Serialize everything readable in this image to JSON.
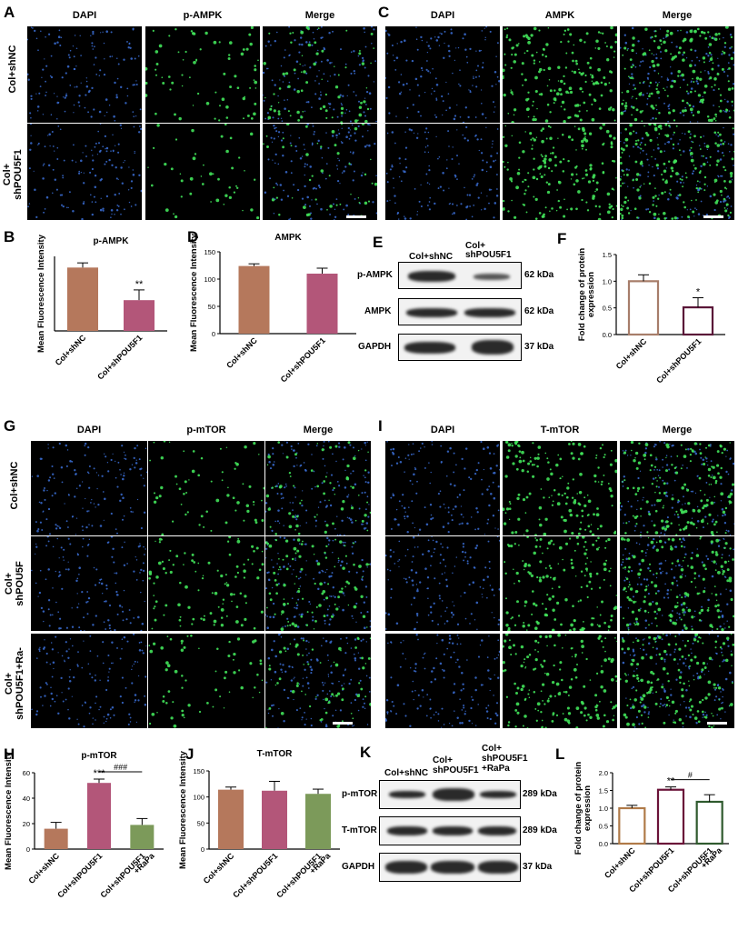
{
  "panels": {
    "A": "A",
    "B": "B",
    "C": "C",
    "D": "D",
    "E": "E",
    "F": "F",
    "G": "G",
    "H": "H",
    "I": "I",
    "J": "J",
    "K": "K",
    "L": "L"
  },
  "fluor_headers": {
    "dapi": "DAPI",
    "p_ampk": "p-AMPK",
    "ampk": "AMPK",
    "merge": "Merge",
    "p_mtor": "p-mTOR",
    "t_mtor": "T-mTOR"
  },
  "row_labels": {
    "col_shnc": "Col+shNC",
    "col_shpou5f1_a": "Col+\nshPOU5F1",
    "col_shpou5f": "Col+\nshPOU5F",
    "col_shpou5f1_ra": "Col+\nshPOU5F1+Ra-"
  },
  "colors": {
    "dapi": "#3b6fd6",
    "green": "#41e35a",
    "bar_brown": "#b5785c",
    "bar_pink": "#b35679",
    "bar_green": "#7c9a5a",
    "f_outline_brown": "#a77d6a",
    "f_outline_dark": "#5a1638",
    "l_brown": "#b07a48",
    "l_maroon": "#6a1238",
    "l_green": "#2f5a2e"
  },
  "blot_E": {
    "lanes": [
      "Col+shNC",
      "Col+\nshPOU5F1"
    ],
    "rows": [
      {
        "label": "p-AMPK",
        "size": "62 kDa"
      },
      {
        "label": "AMPK",
        "size": "62 kDa"
      },
      {
        "label": "GAPDH",
        "size": "37 kDa"
      }
    ]
  },
  "blot_K": {
    "lanes": [
      "Col+shNC",
      "Col+\nshPOU5F1",
      "Col+\nshPOU5F1\n+RaPa"
    ],
    "rows": [
      {
        "label": "p-mTOR",
        "size": "289 kDa"
      },
      {
        "label": "T-mTOR",
        "size": "289 kDa"
      },
      {
        "label": "GAPDH",
        "size": "37 kDa"
      }
    ]
  },
  "chart_data": [
    {
      "id": "B",
      "type": "bar",
      "title": "p-AMPK",
      "ylabel": "Mean Fluorescence Intensity",
      "categories": [
        "Col+shNC",
        "Col+shPOU5F1"
      ],
      "values": [
        68,
        33
      ],
      "errors": [
        5,
        11
      ],
      "sig": [
        "",
        "**"
      ],
      "ylim": [
        0,
        80
      ],
      "yticks": []
    },
    {
      "id": "D",
      "type": "bar",
      "title": "AMPK",
      "ylabel": "Mean Fluorescence Intensity",
      "categories": [
        "Col+shNC",
        "Col+shPOU5F1"
      ],
      "values": [
        124,
        110
      ],
      "errors": [
        4,
        10
      ],
      "sig": [
        "",
        ""
      ],
      "ylim": [
        0,
        150
      ],
      "yticks": [
        "0",
        "50",
        "100",
        "150"
      ]
    },
    {
      "id": "F",
      "type": "bar",
      "ylabel": "Fold change of protein\nexpression",
      "categories": [
        "Col+shNC",
        "Col+shPOU5F1"
      ],
      "values": [
        1.0,
        0.51
      ],
      "errors": [
        0.12,
        0.18
      ],
      "sig": [
        "",
        "*"
      ],
      "ylim": [
        0,
        1.5
      ],
      "yticks": [
        "0.0",
        "0.5",
        "1.0",
        "1.5"
      ]
    },
    {
      "id": "H",
      "type": "bar",
      "title": "p-mTOR",
      "ylabel": "Mean Fluorescence Intensity",
      "categories": [
        "Col+shNC",
        "Col+shPOU5F1",
        "Col+shPOU5F1\n+RaPa"
      ],
      "values": [
        16,
        52,
        19
      ],
      "errors": [
        5,
        3,
        5
      ],
      "sig": [
        "",
        "***",
        ""
      ],
      "bracket": "###",
      "ylim": [
        0,
        60
      ],
      "yticks": [
        "0",
        "20",
        "40",
        "60"
      ]
    },
    {
      "id": "J",
      "type": "bar",
      "title": "T-mTOR",
      "ylabel": "Mean Fluorescence Intensity",
      "categories": [
        "Col+shNC",
        "Col+shPOU5F1",
        "Col+shPOU5F1\n+RaPa"
      ],
      "values": [
        114,
        112,
        106
      ],
      "errors": [
        5,
        18,
        9
      ],
      "sig": [
        "",
        "",
        ""
      ],
      "ylim": [
        0,
        150
      ],
      "yticks": [
        "0",
        "50",
        "100",
        "150"
      ]
    },
    {
      "id": "L",
      "type": "bar",
      "ylabel": "Fold change of protein\nexpression",
      "categories": [
        "Col+shNC",
        "Col+shPOU5F1",
        "Col+shPOU5F1\n+RaPa"
      ],
      "values": [
        1.0,
        1.52,
        1.18
      ],
      "errors": [
        0.08,
        0.08,
        0.2
      ],
      "sig": [
        "",
        "**",
        ""
      ],
      "bracket": "#",
      "ylim": [
        0,
        2.0
      ],
      "yticks": [
        "0.0",
        "0.5",
        "1.0",
        "1.5",
        "2.0"
      ]
    }
  ]
}
